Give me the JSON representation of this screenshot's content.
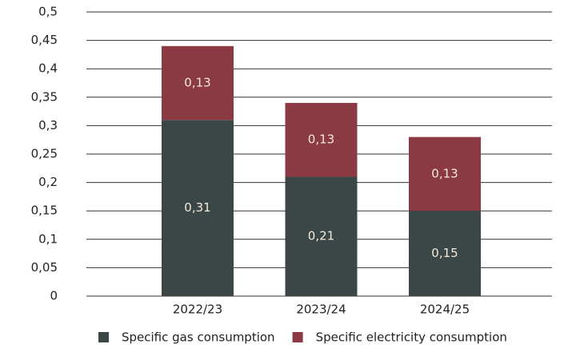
{
  "chart_data": {
    "type": "stacked-bar",
    "categories": [
      "2022/23",
      "2023/24",
      "2024/25"
    ],
    "series": [
      {
        "name": "Specific gas consumption",
        "color": "#3b4647",
        "values": [
          0.31,
          0.21,
          0.15
        ],
        "value_labels": [
          "0,31",
          "0,21",
          "0,15"
        ]
      },
      {
        "name": "Specific electricity consumption",
        "color": "#8b3a44",
        "values": [
          0.13,
          0.13,
          0.13
        ],
        "value_labels": [
          "0,13",
          "0,13",
          "0,13"
        ]
      }
    ],
    "ylim": [
      0,
      0.5
    ],
    "yticks": [
      0,
      {
        "value": 0.05,
        "label": "0,05"
      },
      {
        "value": 0.1,
        "label": "0,1"
      },
      {
        "value": 0.15,
        "label": "0,15"
      },
      {
        "value": 0.2,
        "label": "0,2"
      },
      {
        "value": 0.25,
        "label": "0,25"
      },
      {
        "value": 0.3,
        "label": "0,3"
      },
      {
        "value": 0.35,
        "label": "0,35"
      },
      {
        "value": 0.4,
        "label": "0,4"
      },
      {
        "value": 0.45,
        "label": "0,45"
      },
      {
        "value": 0.5,
        "label": "0,5"
      }
    ],
    "grid": true
  }
}
